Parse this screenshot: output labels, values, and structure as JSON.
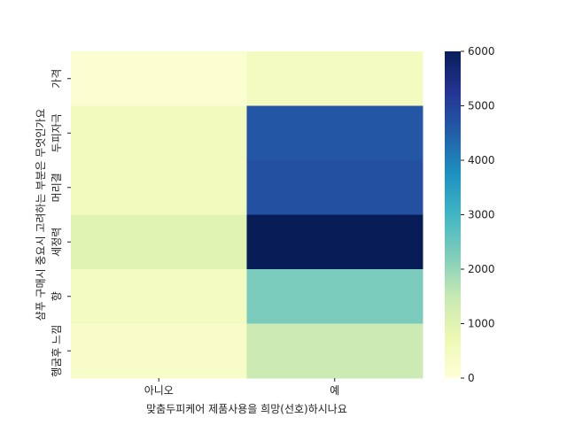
{
  "chart_data": {
    "type": "heatmap",
    "title": "",
    "xlabel": "맞춤두피케어 제품사용을 희망(선호)하시나요",
    "ylabel": "샴푸 구매시 중요시 고려하는 부분은 무엇인가요",
    "x_categories": [
      "아니오",
      "예"
    ],
    "y_categories": [
      "가격",
      "두피자극",
      "머리결",
      "세정력",
      "향",
      "헹굼후 느낌"
    ],
    "values": [
      [
        150,
        450
      ],
      [
        500,
        4650
      ],
      [
        500,
        4750
      ],
      [
        1000,
        6000
      ],
      [
        450,
        2300
      ],
      [
        300,
        1400
      ]
    ],
    "colorbar": {
      "min": 0,
      "max": 6000,
      "ticks": [
        "0",
        "1000",
        "2000",
        "3000",
        "4000",
        "5000",
        "6000"
      ],
      "colormap": "YlGnBu"
    },
    "colors": {
      "ylgnbu": [
        "#ffffd9",
        "#edf8b1",
        "#c7e9b4",
        "#7fcdbb",
        "#41b6c4",
        "#1d91c0",
        "#225ea8",
        "#253494",
        "#081d58"
      ]
    }
  }
}
